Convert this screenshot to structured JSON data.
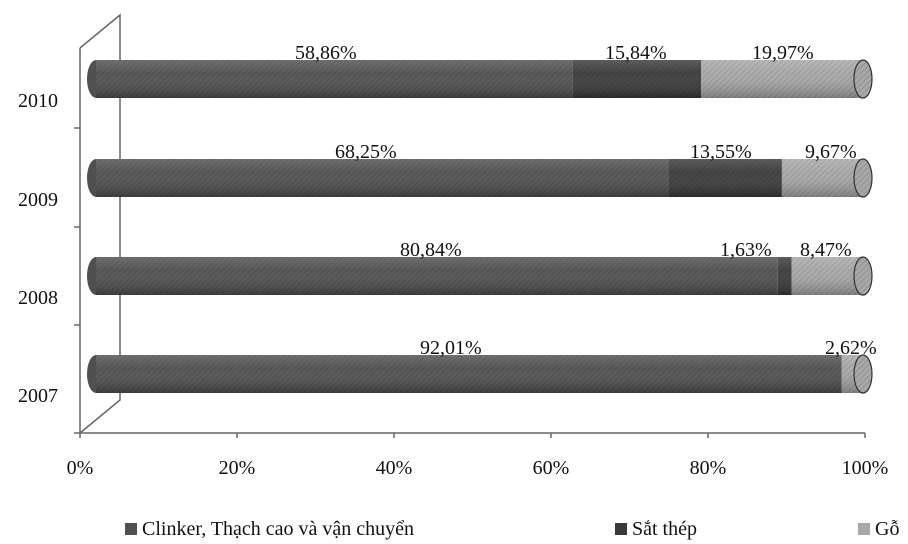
{
  "chart_data": {
    "type": "bar",
    "orientation": "horizontal",
    "stacked": true,
    "style": "3d-cylinder",
    "categories": [
      "2010",
      "2009",
      "2008",
      "2007"
    ],
    "series": [
      {
        "name": "Clinker, Thạch cao và vận chuyển",
        "color": "#505050",
        "values": [
          58.86,
          68.25,
          80.84,
          92.01
        ]
      },
      {
        "name": "Sắt thép",
        "color": "#3a3a3a",
        "values": [
          15.84,
          13.55,
          1.63,
          0
        ]
      },
      {
        "name": "Gỗ",
        "color": "#a8a8a8",
        "values": [
          19.97,
          9.67,
          8.47,
          2.62
        ]
      }
    ],
    "data_labels": [
      [
        "58,86%",
        "15,84%",
        "19,97%"
      ],
      [
        "68,25%",
        "13,55%",
        "9,67%"
      ],
      [
        "80,84%",
        "1,63%",
        "8,47%"
      ],
      [
        "92,01%",
        "",
        "2,62%"
      ]
    ],
    "xlim": [
      0,
      100
    ],
    "x_ticks": [
      "0%",
      "20%",
      "40%",
      "60%",
      "80%",
      "100%"
    ],
    "title": "",
    "xlabel": "",
    "ylabel": "",
    "grid": false,
    "legend_position": "bottom"
  }
}
